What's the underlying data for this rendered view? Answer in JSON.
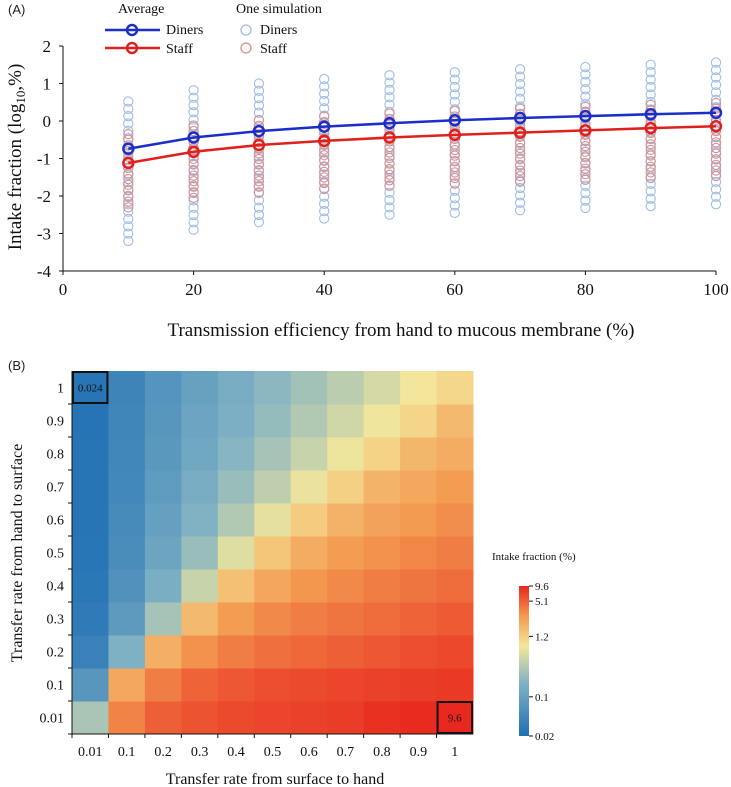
{
  "chart_data": [
    {
      "panel_label": "(A)",
      "type": "line",
      "xlabel": "Transmission efficiency from hand to mucous membrane (%)",
      "ylabel": "Intake fraction (log",
      "ylabel_sub": "10",
      "ylabel_tail": ",%)",
      "xlim": [
        0,
        100
      ],
      "ylim": [
        -4,
        2
      ],
      "x_ticks": [
        0,
        20,
        40,
        60,
        80,
        100
      ],
      "y_ticks": [
        -4,
        -3,
        -2,
        -1,
        0,
        1,
        2
      ],
      "legend": {
        "average_title": "Average",
        "simulation_title": "One simulation",
        "diners_label": "Diners",
        "staff_label": "Staff",
        "diners_sim_label": "Diners",
        "staff_sim_label": "Staff"
      },
      "x": [
        10,
        20,
        30,
        40,
        50,
        60,
        70,
        80,
        90,
        100
      ],
      "series": [
        {
          "name": "Diners",
          "color": "#1a2ec8",
          "values": [
            -0.74,
            -0.44,
            -0.27,
            -0.15,
            -0.06,
            0.02,
            0.08,
            0.13,
            0.18,
            0.22
          ]
        },
        {
          "name": "Staff",
          "color": "#e0201c",
          "values": [
            -1.12,
            -0.82,
            -0.64,
            -0.53,
            -0.44,
            -0.37,
            -0.31,
            -0.25,
            -0.19,
            -0.14
          ]
        }
      ],
      "simulations": {
        "diners_color": "#9fbde3",
        "staff_color": "#d99090",
        "diners_min": [
          -3.2,
          -2.9,
          -2.7,
          -2.6,
          -2.5,
          -2.45,
          -2.38,
          -2.32,
          -2.27,
          -2.22
        ],
        "diners_max": [
          0.52,
          0.82,
          1.0,
          1.12,
          1.22,
          1.3,
          1.38,
          1.44,
          1.5,
          1.56
        ],
        "staff_min": [
          -2.3,
          -2.05,
          -1.9,
          -1.8,
          -1.73,
          -1.67,
          -1.62,
          -1.57,
          -1.52,
          -1.47
        ],
        "staff_max": [
          -0.35,
          -0.12,
          0.02,
          0.12,
          0.2,
          0.27,
          0.33,
          0.38,
          0.43,
          0.48
        ],
        "count_per_x": 20
      }
    },
    {
      "panel_label": "(B)",
      "type": "heatmap",
      "xlabel": "Transfer rate from surface to hand",
      "ylabel": "Transfer rate from hand to surface",
      "x_categories": [
        "0.01",
        "0.1",
        "0.2",
        "0.3",
        "0.4",
        "0.5",
        "0.6",
        "0.7",
        "0.8",
        "0.9",
        "1"
      ],
      "y_categories": [
        "0.01",
        "0.1",
        "0.2",
        "0.3",
        "0.4",
        "0.5",
        "0.6",
        "0.7",
        "0.8",
        "0.9",
        "1"
      ],
      "values_log10_note": "values are log10 of intake fraction (%); rows from y=0.01 (bottom) to y=1 (top)",
      "values_log10": [
        [
          -0.52,
          0.55,
          0.72,
          0.78,
          0.82,
          0.84,
          0.86,
          0.88,
          0.94,
          0.97,
          0.98
        ],
        [
          -1.15,
          0.35,
          0.58,
          0.7,
          0.76,
          0.8,
          0.82,
          0.84,
          0.86,
          0.88,
          0.9
        ],
        [
          -1.45,
          -0.78,
          0.3,
          0.48,
          0.58,
          0.64,
          0.68,
          0.72,
          0.76,
          0.8,
          0.83
        ],
        [
          -1.55,
          -1.1,
          -0.55,
          0.22,
          0.42,
          0.52,
          0.58,
          0.62,
          0.66,
          0.7,
          0.74
        ],
        [
          -1.58,
          -1.22,
          -0.82,
          -0.35,
          0.18,
          0.36,
          0.46,
          0.52,
          0.58,
          0.62,
          0.66
        ],
        [
          -1.6,
          -1.28,
          -0.95,
          -0.62,
          -0.22,
          0.14,
          0.32,
          0.42,
          0.48,
          0.54,
          0.58
        ],
        [
          -1.61,
          -1.32,
          -1.02,
          -0.76,
          -0.48,
          -0.18,
          0.1,
          0.28,
          0.38,
          0.44,
          0.5
        ],
        [
          -1.62,
          -1.35,
          -1.08,
          -0.85,
          -0.62,
          -0.4,
          -0.15,
          0.07,
          0.26,
          0.35,
          0.42
        ],
        [
          -1.62,
          -1.37,
          -1.12,
          -0.92,
          -0.72,
          -0.55,
          -0.35,
          -0.14,
          0.05,
          0.24,
          0.32
        ],
        [
          -1.63,
          -1.38,
          -1.15,
          -0.96,
          -0.8,
          -0.64,
          -0.48,
          -0.3,
          -0.12,
          0.03,
          0.22
        ],
        [
          -1.62,
          -1.4,
          -1.18,
          -1.0,
          -0.85,
          -0.7,
          -0.56,
          -0.42,
          -0.27,
          -0.1,
          0.02
        ]
      ],
      "annotations": [
        {
          "x": "0.01",
          "y": "1",
          "text": "0.024"
        },
        {
          "x": "1",
          "y": "0.01",
          "text": "9.6"
        }
      ],
      "colorbar": {
        "title": "Intake fraction (%)",
        "tick_labels": [
          "9.6",
          "5.1",
          "1.2",
          "0.1",
          "0.02"
        ],
        "tick_values_log10": [
          0.98,
          0.71,
          0.08,
          -1.0,
          -1.7
        ],
        "range_log10": [
          -1.7,
          0.98
        ],
        "colors": [
          "#1f6fb4",
          "#f4e79a",
          "#e8281e"
        ]
      }
    }
  ]
}
